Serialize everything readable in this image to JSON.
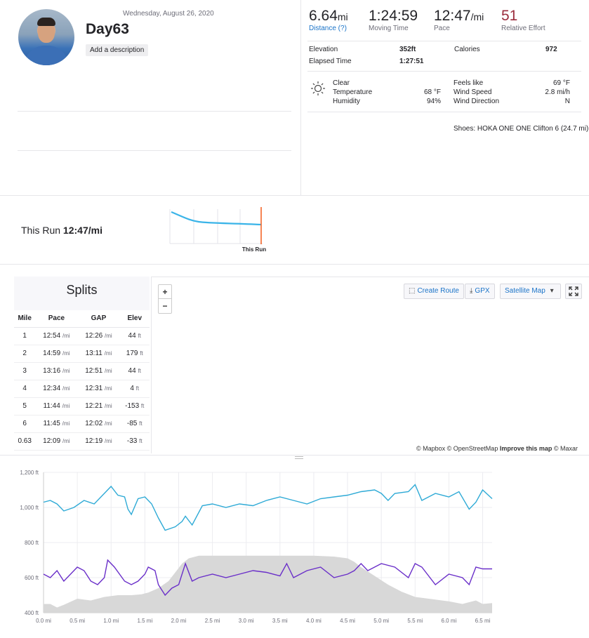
{
  "activity": {
    "date": "Wednesday, August 26, 2020",
    "title": "Day63",
    "add_description": "Add a description"
  },
  "stats": {
    "distance": {
      "value": "6.64",
      "unit": "mi",
      "label": "Distance (?)"
    },
    "moving_time": {
      "value": "1:24:59",
      "label": "Moving Time"
    },
    "pace": {
      "value": "12:47",
      "unit": "/mi",
      "label": "Pace"
    },
    "relative_effort": {
      "value": "51",
      "label": "Relative Effort"
    }
  },
  "details": {
    "elevation_label": "Elevation",
    "elevation_value": "352ft",
    "calories_label": "Calories",
    "calories_value": "972",
    "elapsed_label": "Elapsed Time",
    "elapsed_value": "1:27:51"
  },
  "weather": {
    "condition": "Clear",
    "temperature_label": "Temperature",
    "temperature_value": "68 °F",
    "humidity_label": "Humidity",
    "humidity_value": "94%",
    "feels_like_label": "Feels like",
    "feels_like_value": "69 °F",
    "wind_speed_label": "Wind Speed",
    "wind_speed_value": "2.8 mi/h",
    "wind_direction_label": "Wind Direction",
    "wind_direction_value": "N"
  },
  "shoes": "Shoes: HOKA ONE ONE Clifton 6 (24.7 mi)",
  "this_run": {
    "label": "This Run",
    "pace": "12:47/mi",
    "marker_label": "This Run"
  },
  "splits": {
    "title": "Splits",
    "headers": [
      "Mile",
      "Pace",
      "GAP",
      "Elev"
    ],
    "rows": [
      {
        "mile": "1",
        "pace": "12:54",
        "gap": "12:26",
        "elev": "44"
      },
      {
        "mile": "2",
        "pace": "14:59",
        "gap": "13:11",
        "elev": "179"
      },
      {
        "mile": "3",
        "pace": "13:16",
        "gap": "12:51",
        "elev": "44"
      },
      {
        "mile": "4",
        "pace": "12:34",
        "gap": "12:31",
        "elev": "4"
      },
      {
        "mile": "5",
        "pace": "11:44",
        "gap": "12:21",
        "elev": "-153"
      },
      {
        "mile": "6",
        "pace": "11:45",
        "gap": "12:02",
        "elev": "-85"
      },
      {
        "mile": "0.63",
        "pace": "12:09",
        "gap": "12:19",
        "elev": "-33"
      }
    ],
    "pace_unit": "/mi",
    "elev_unit": "ft"
  },
  "map": {
    "zoom_in": "+",
    "zoom_out": "−",
    "create_route": "Create Route",
    "gpx": "GPX",
    "satellite_map": "Satellite Map",
    "attribution_1": "© Mapbox © OpenStreetMap",
    "attribution_improve": "Improve this map",
    "attribution_2": "© Maxar"
  },
  "chart_data": {
    "type": "line",
    "y_ticks": [
      "1,200 ft",
      "1,000 ft",
      "800 ft",
      "600 ft",
      "400 ft"
    ],
    "x_ticks": [
      "0.0 mi",
      "0.5 mi",
      "1.0 mi",
      "1.5 mi",
      "2.0 mi",
      "2.5 mi",
      "3.0 mi",
      "3.5 mi",
      "4.0 mi",
      "4.5 mi",
      "5.0 mi",
      "5.5 mi",
      "6.0 mi",
      "6.5 mi"
    ],
    "ylim": [
      400,
      1200
    ],
    "xlim": [
      0,
      6.64
    ],
    "elevation": {
      "x": [
        0,
        0.1,
        0.2,
        0.3,
        0.5,
        0.7,
        0.9,
        1.1,
        1.3,
        1.45,
        1.55,
        1.7,
        1.85,
        1.95,
        2.05,
        2.15,
        2.3,
        2.5,
        3.0,
        3.5,
        4.0,
        4.3,
        4.5,
        4.6,
        4.7,
        4.9,
        5.1,
        5.3,
        5.5,
        5.8,
        6.0,
        6.2,
        6.4,
        6.5,
        6.64
      ],
      "y": [
        450,
        450,
        430,
        445,
        480,
        470,
        490,
        500,
        500,
        505,
        515,
        540,
        580,
        630,
        680,
        710,
        725,
        725,
        725,
        725,
        725,
        720,
        710,
        690,
        660,
        610,
        560,
        520,
        490,
        475,
        465,
        450,
        470,
        450,
        455
      ]
    },
    "series_cyan": {
      "x": [
        0,
        0.1,
        0.2,
        0.3,
        0.45,
        0.6,
        0.75,
        0.9,
        1.0,
        1.1,
        1.2,
        1.25,
        1.3,
        1.4,
        1.5,
        1.6,
        1.7,
        1.8,
        1.95,
        2.05,
        2.1,
        2.2,
        2.35,
        2.5,
        2.7,
        2.9,
        3.1,
        3.3,
        3.5,
        3.7,
        3.9,
        4.1,
        4.3,
        4.5,
        4.7,
        4.9,
        5.0,
        5.1,
        5.2,
        5.4,
        5.5,
        5.6,
        5.8,
        6.0,
        6.15,
        6.3,
        6.4,
        6.5,
        6.64
      ],
      "y": [
        1030,
        1040,
        1020,
        980,
        1000,
        1040,
        1020,
        1080,
        1120,
        1070,
        1060,
        990,
        960,
        1050,
        1060,
        1020,
        940,
        870,
        890,
        920,
        950,
        900,
        1010,
        1020,
        1000,
        1020,
        1010,
        1040,
        1060,
        1040,
        1020,
        1050,
        1060,
        1070,
        1090,
        1100,
        1080,
        1040,
        1080,
        1090,
        1130,
        1040,
        1080,
        1060,
        1090,
        990,
        1030,
        1100,
        1050
      ]
    },
    "series_purple": {
      "x": [
        0,
        0.1,
        0.2,
        0.3,
        0.4,
        0.5,
        0.6,
        0.7,
        0.8,
        0.9,
        0.95,
        1.05,
        1.2,
        1.3,
        1.4,
        1.5,
        1.55,
        1.65,
        1.7,
        1.8,
        1.9,
        2.0,
        2.1,
        2.2,
        2.3,
        2.5,
        2.7,
        2.9,
        3.1,
        3.3,
        3.5,
        3.6,
        3.7,
        3.9,
        4.1,
        4.3,
        4.5,
        4.6,
        4.7,
        4.8,
        5.0,
        5.2,
        5.4,
        5.5,
        5.6,
        5.8,
        6.0,
        6.2,
        6.3,
        6.4,
        6.5,
        6.64
      ],
      "y": [
        620,
        600,
        640,
        580,
        620,
        660,
        640,
        580,
        560,
        600,
        700,
        660,
        580,
        560,
        580,
        620,
        660,
        640,
        560,
        500,
        540,
        560,
        680,
        580,
        600,
        620,
        600,
        620,
        640,
        630,
        610,
        680,
        600,
        640,
        660,
        600,
        620,
        640,
        680,
        640,
        680,
        660,
        600,
        680,
        660,
        560,
        620,
        600,
        560,
        660,
        650,
        650
      ]
    }
  }
}
